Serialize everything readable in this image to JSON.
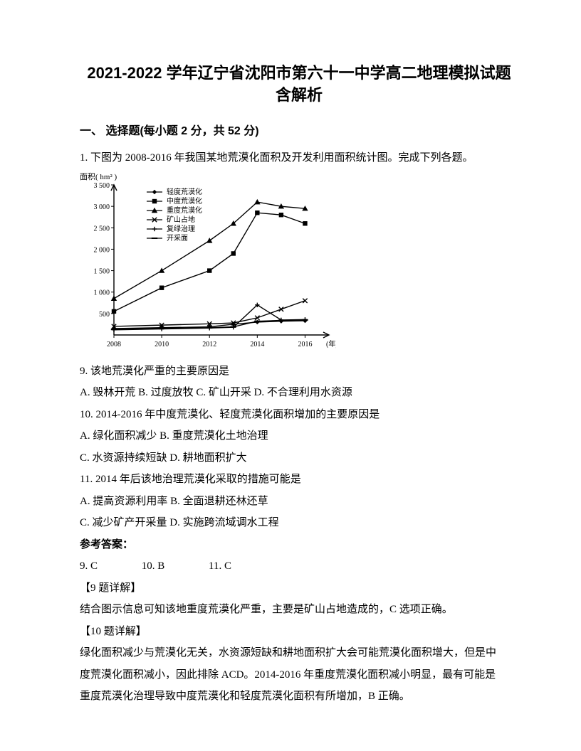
{
  "title": "2021-2022 学年辽宁省沈阳市第六十一中学高二地理模拟试题含解析",
  "section_heading": "一、 选择题(每小题 2 分，共 52 分)",
  "q1_stem": "1. 下图为 2008-2016 年我国某地荒漠化面积及开发利用面积统计图。完成下列各题。",
  "chart": {
    "y_label": "面积( hm² )",
    "x_label": "(年)",
    "y_ticks": [
      "500",
      "1 000",
      "1 500",
      "2 000",
      "2 500",
      "3 000",
      "3 500"
    ],
    "x_ticks": [
      "2008",
      "2010",
      "2012",
      "2014",
      "2016"
    ],
    "y_domain": [
      0,
      3500
    ],
    "x_domain": [
      2008,
      2017
    ],
    "legend": [
      "轻度荒漠化",
      "中度荒漠化",
      "重度荒漠化",
      "矿山占地",
      "复绿治理",
      "开采面"
    ],
    "series": {
      "light": {
        "points": [
          [
            2008,
            150
          ],
          [
            2010,
            170
          ],
          [
            2012,
            190
          ],
          [
            2013,
            250
          ],
          [
            2014,
            300
          ],
          [
            2015,
            320
          ],
          [
            2016,
            330
          ]
        ],
        "marker": "diamond"
      },
      "medium": {
        "points": [
          [
            2008,
            550
          ],
          [
            2010,
            1100
          ],
          [
            2012,
            1500
          ],
          [
            2013,
            1900
          ],
          [
            2014,
            2850
          ],
          [
            2015,
            2800
          ],
          [
            2016,
            2600
          ]
        ],
        "marker": "square"
      },
      "heavy": {
        "points": [
          [
            2008,
            850
          ],
          [
            2010,
            1500
          ],
          [
            2012,
            2200
          ],
          [
            2013,
            2600
          ],
          [
            2014,
            3100
          ],
          [
            2015,
            3000
          ],
          [
            2016,
            2950
          ]
        ],
        "marker": "triangle"
      },
      "mining": {
        "points": [
          [
            2008,
            200
          ],
          [
            2010,
            230
          ],
          [
            2012,
            260
          ],
          [
            2013,
            280
          ],
          [
            2014,
            400
          ],
          [
            2015,
            600
          ],
          [
            2016,
            800
          ]
        ],
        "marker": "x"
      },
      "regreen": {
        "points": [
          [
            2008,
            120
          ],
          [
            2010,
            140
          ],
          [
            2012,
            160
          ],
          [
            2013,
            180
          ],
          [
            2014,
            700
          ],
          [
            2015,
            350
          ],
          [
            2016,
            360
          ]
        ],
        "marker": "plus"
      },
      "mined": {
        "points": [
          [
            2008,
            130
          ],
          [
            2010,
            150
          ],
          [
            2012,
            170
          ],
          [
            2013,
            190
          ],
          [
            2014,
            320
          ],
          [
            2015,
            340
          ],
          [
            2016,
            350
          ]
        ],
        "marker": "dash"
      }
    },
    "colors": {
      "axis": "#000000",
      "series": "#000000",
      "bg": "#ffffff"
    },
    "stroke_width": 1.4
  },
  "q9": {
    "stem": "9.  该地荒漠化严重的主要原因是",
    "opts": "A.  毁林开荒   B.  过度放牧   C.  矿山开采   D.  不合理利用水资源"
  },
  "q10": {
    "stem": "10.  2014-2016 年中度荒漠化、轻度荒漠化面积增加的主要原因是",
    "a": "A.  绿化面积减少      B.  重度荒漠化土地治理",
    "b": "C.  水资源持续短缺    D.  耕地面积扩大"
  },
  "q11": {
    "stem": "11.  2014 年后该地治理荒漠化采取的措施可能是",
    "a": "A.  提高资源利用率    B.  全面退耕还林还草",
    "b": "C.  减少矿产开采量    D.  实施跨流域调水工程"
  },
  "answers_heading": "参考答案：",
  "answers": {
    "a9": "9. C",
    "a10": "10. B",
    "a11": "11. C"
  },
  "exp9_h": "【9 题详解】",
  "exp9": "结合图示信息可知该地重度荒漠化严重，主要是矿山占地造成的，C 选项正确。",
  "exp10_h": "【10 题详解】",
  "exp10a": "绿化面积减少与荒漠化无关，水资源短缺和耕地面积扩大会可能荒漠化面积增大，但是中",
  "exp10b": "度荒漠化面积减小，因此排除 ACD。2014-2016 年重度荒漠化面积减小明显，最有可能是",
  "exp10c": "重度荒漠化治理导致中度荒漠化和轻度荒漠化面积有所增加，B 正确。"
}
